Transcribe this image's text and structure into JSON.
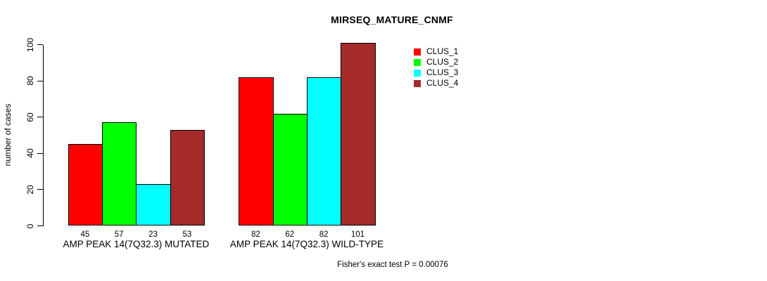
{
  "chart_data": {
    "type": "bar",
    "title": "MIRSEQ_MATURE_CNMF",
    "ylabel": "number of cases",
    "xlabel": "",
    "ylim": [
      0,
      100
    ],
    "yticks": [
      0,
      20,
      40,
      60,
      80,
      100
    ],
    "grid": false,
    "legend_position": "top-right-inside",
    "categories": [
      "AMP PEAK 14(7Q32.3) MUTATED",
      "AMP PEAK 14(7Q32.3) WILD-TYPE"
    ],
    "series": [
      {
        "name": "CLUS_1",
        "color": "#FF0000",
        "values": [
          45,
          82
        ]
      },
      {
        "name": "CLUS_2",
        "color": "#00FF00",
        "values": [
          57,
          62
        ]
      },
      {
        "name": "CLUS_3",
        "color": "#00FFFF",
        "values": [
          23,
          82
        ]
      },
      {
        "name": "CLUS_4",
        "color": "#A52A2A",
        "values": [
          53,
          101
        ]
      }
    ],
    "footnote": "Fisher's exact test P = 0.00076"
  },
  "colors": {
    "background": "#FFFFFF",
    "axis": "#000000",
    "text": "#000000"
  }
}
